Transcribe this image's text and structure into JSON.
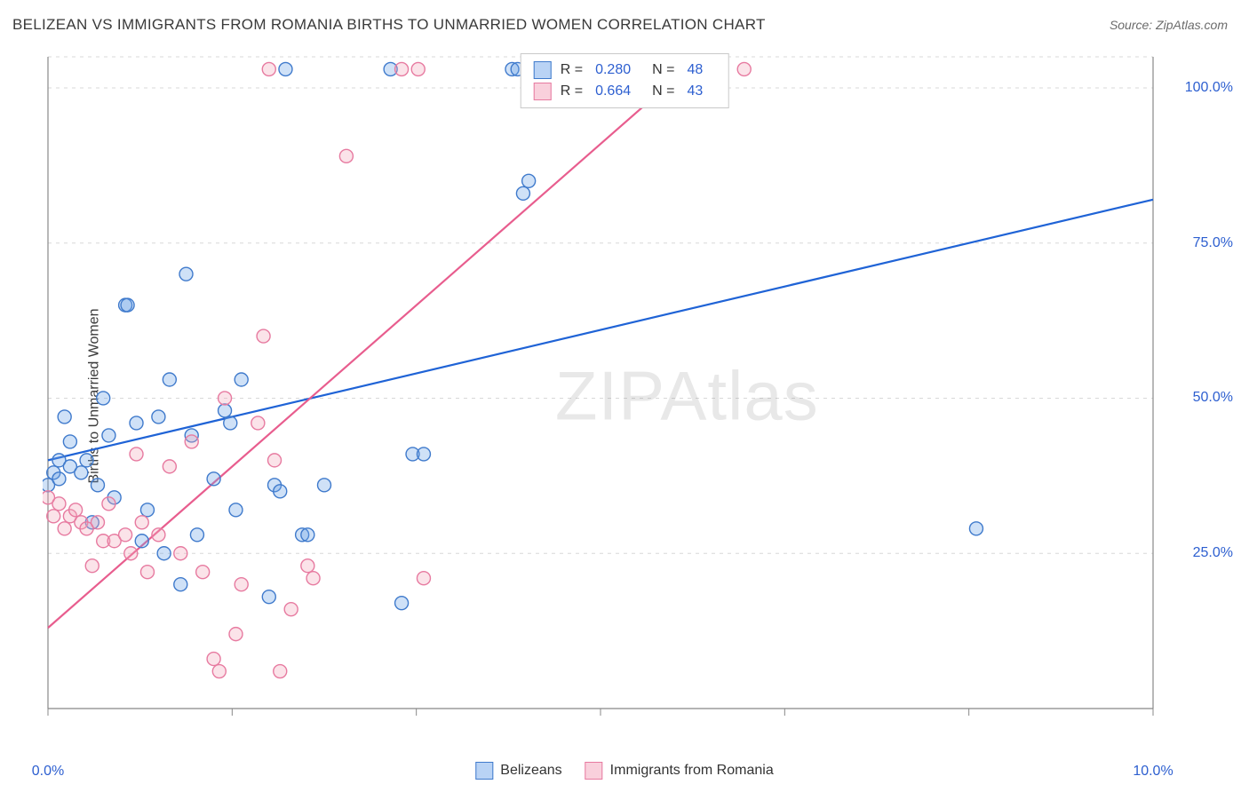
{
  "title": "BELIZEAN VS IMMIGRANTS FROM ROMANIA BIRTHS TO UNMARRIED WOMEN CORRELATION CHART",
  "source": "Source: ZipAtlas.com",
  "ylabel": "Births to Unmarried Women",
  "watermark": "ZIPAtlas",
  "chart": {
    "type": "scatter-with-regression",
    "xlim": [
      0,
      10
    ],
    "ylim": [
      0,
      105
    ],
    "xticks": [
      0,
      10
    ],
    "xtick_labels": [
      "0.0%",
      "10.0%"
    ],
    "yticks": [
      25,
      50,
      75,
      100
    ],
    "ytick_labels": [
      "25.0%",
      "50.0%",
      "75.0%",
      "100.0%"
    ],
    "grid_color": "#d8d8d8",
    "axis_color": "#888888",
    "background_color": "#ffffff",
    "marker_radius": 7.5,
    "marker_stroke_width": 1.4,
    "marker_fill_opacity": 0.32,
    "line_width": 2.2,
    "series": [
      {
        "name": "Belizeans",
        "color": "#6aa1e6",
        "stroke": "#3f7acc",
        "line_color": "#1f63d6",
        "R": "0.280",
        "N": "48",
        "trend": {
          "x1": 0,
          "y1": 40,
          "x2": 10,
          "y2": 82
        },
        "points": [
          [
            0.0,
            36
          ],
          [
            0.05,
            38
          ],
          [
            0.1,
            40
          ],
          [
            0.1,
            37
          ],
          [
            0.15,
            47
          ],
          [
            0.2,
            43
          ],
          [
            0.2,
            39
          ],
          [
            0.3,
            38
          ],
          [
            0.35,
            40
          ],
          [
            0.4,
            30
          ],
          [
            0.45,
            36
          ],
          [
            0.5,
            50
          ],
          [
            0.55,
            44
          ],
          [
            0.6,
            34
          ],
          [
            0.7,
            65
          ],
          [
            0.72,
            65
          ],
          [
            0.8,
            46
          ],
          [
            0.85,
            27
          ],
          [
            0.9,
            32
          ],
          [
            1.0,
            47
          ],
          [
            1.05,
            25
          ],
          [
            1.1,
            53
          ],
          [
            1.2,
            20
          ],
          [
            1.25,
            70
          ],
          [
            1.3,
            44
          ],
          [
            1.35,
            28
          ],
          [
            1.5,
            37
          ],
          [
            1.6,
            48
          ],
          [
            1.65,
            46
          ],
          [
            1.7,
            32
          ],
          [
            1.75,
            53
          ],
          [
            2.0,
            18
          ],
          [
            2.05,
            36
          ],
          [
            2.1,
            35
          ],
          [
            2.15,
            103
          ],
          [
            2.3,
            28
          ],
          [
            2.35,
            28
          ],
          [
            2.5,
            36
          ],
          [
            3.1,
            103
          ],
          [
            3.2,
            17
          ],
          [
            3.3,
            41
          ],
          [
            3.4,
            41
          ],
          [
            4.2,
            103
          ],
          [
            4.25,
            103
          ],
          [
            4.3,
            83
          ],
          [
            4.35,
            85
          ],
          [
            4.6,
            103
          ],
          [
            8.4,
            29
          ]
        ]
      },
      {
        "name": "Immigrants from Romania",
        "color": "#f2a8bc",
        "stroke": "#e77aa0",
        "line_color": "#e85d8e",
        "R": "0.664",
        "N": "43",
        "trend": {
          "x1": 0,
          "y1": 13,
          "x2": 5.9,
          "y2": 105
        },
        "points": [
          [
            0.0,
            34
          ],
          [
            0.05,
            31
          ],
          [
            0.1,
            33
          ],
          [
            0.15,
            29
          ],
          [
            0.2,
            31
          ],
          [
            0.25,
            32
          ],
          [
            0.3,
            30
          ],
          [
            0.35,
            29
          ],
          [
            0.4,
            23
          ],
          [
            0.45,
            30
          ],
          [
            0.5,
            27
          ],
          [
            0.55,
            33
          ],
          [
            0.6,
            27
          ],
          [
            0.7,
            28
          ],
          [
            0.75,
            25
          ],
          [
            0.8,
            41
          ],
          [
            0.85,
            30
          ],
          [
            0.9,
            22
          ],
          [
            1.0,
            28
          ],
          [
            1.1,
            39
          ],
          [
            1.2,
            25
          ],
          [
            1.3,
            43
          ],
          [
            1.4,
            22
          ],
          [
            1.5,
            8
          ],
          [
            1.55,
            6
          ],
          [
            1.6,
            50
          ],
          [
            1.7,
            12
          ],
          [
            1.75,
            20
          ],
          [
            1.9,
            46
          ],
          [
            1.95,
            60
          ],
          [
            2.0,
            103
          ],
          [
            2.05,
            40
          ],
          [
            2.1,
            6
          ],
          [
            2.2,
            16
          ],
          [
            2.35,
            23
          ],
          [
            2.4,
            21
          ],
          [
            2.7,
            89
          ],
          [
            3.2,
            103
          ],
          [
            3.35,
            103
          ],
          [
            3.4,
            21
          ],
          [
            4.5,
            103
          ],
          [
            4.7,
            103
          ],
          [
            6.3,
            103
          ]
        ]
      }
    ]
  },
  "legend_bottom": [
    {
      "label": "Belizeans",
      "color": "#b9d3f5",
      "border": "#3f7acc"
    },
    {
      "label": "Immigrants from Romania",
      "color": "#f9d0dc",
      "border": "#e77aa0"
    }
  ]
}
